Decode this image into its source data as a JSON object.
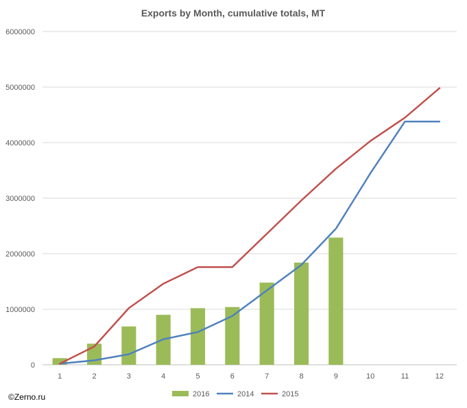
{
  "copyright": "©Zerno.ru",
  "colors": {
    "2016": "#9bbb59",
    "2014": "#4f81bd",
    "2015": "#c0504d",
    "grid": "#d9d9d9",
    "axis": "#bfbfbf"
  },
  "chart_data": {
    "type": "bar+line",
    "title": "Exports by Month, cumulative totals, MT",
    "xlabel": "",
    "ylabel": "",
    "categories": [
      "1",
      "2",
      "3",
      "4",
      "5",
      "6",
      "7",
      "8",
      "9",
      "10",
      "11",
      "12"
    ],
    "ylim": [
      0,
      6000000
    ],
    "yticks": [
      0,
      1000000,
      2000000,
      3000000,
      4000000,
      5000000,
      6000000
    ],
    "ytick_labels": [
      "0",
      "1000000",
      "2000000",
      "3000000",
      "4000000",
      "5000000",
      "6000000"
    ],
    "grid": true,
    "legend_position": "bottom",
    "series": [
      {
        "name": "2016",
        "type": "bar",
        "values": [
          120000,
          380000,
          690000,
          900000,
          1020000,
          1040000,
          1480000,
          1840000,
          2290000,
          null,
          null,
          null
        ]
      },
      {
        "name": "2014",
        "type": "line",
        "values": [
          20000,
          80000,
          190000,
          460000,
          590000,
          880000,
          1340000,
          1800000,
          2450000,
          3450000,
          4380000,
          4380000
        ]
      },
      {
        "name": "2015",
        "type": "line",
        "values": [
          20000,
          330000,
          1020000,
          1460000,
          1760000,
          1760000,
          2360000,
          2960000,
          3530000,
          4030000,
          4450000,
          4980000
        ]
      }
    ]
  }
}
